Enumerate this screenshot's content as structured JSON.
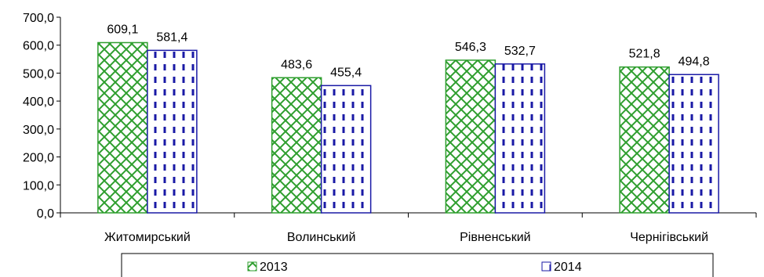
{
  "chart_data": {
    "type": "bar",
    "categories": [
      "Житомирський",
      "Волинський",
      "Рівненський",
      "Чернігівський"
    ],
    "series": [
      {
        "name": "2013",
        "values": [
          609.1,
          483.6,
          546.3,
          521.8
        ],
        "labels": [
          "609,1",
          "483,6",
          "546,3",
          "521,8"
        ],
        "color": "#2e9e2e",
        "pattern": "diagonal-cross"
      },
      {
        "name": "2014",
        "values": [
          581.4,
          455.4,
          532.7,
          494.8
        ],
        "labels": [
          "581,4",
          "455,4",
          "532,7",
          "494,8"
        ],
        "color": "#1a1aa6",
        "pattern": "vertical-dashes"
      }
    ],
    "ylim": [
      0,
      700
    ],
    "yticks": [
      0,
      100,
      200,
      300,
      400,
      500,
      600,
      700
    ],
    "ytick_labels": [
      "0,0",
      "100,0",
      "200,0",
      "300,0",
      "400,0",
      "500,0",
      "600,0",
      "700,0"
    ],
    "legend_position": "bottom",
    "grid": false
  }
}
